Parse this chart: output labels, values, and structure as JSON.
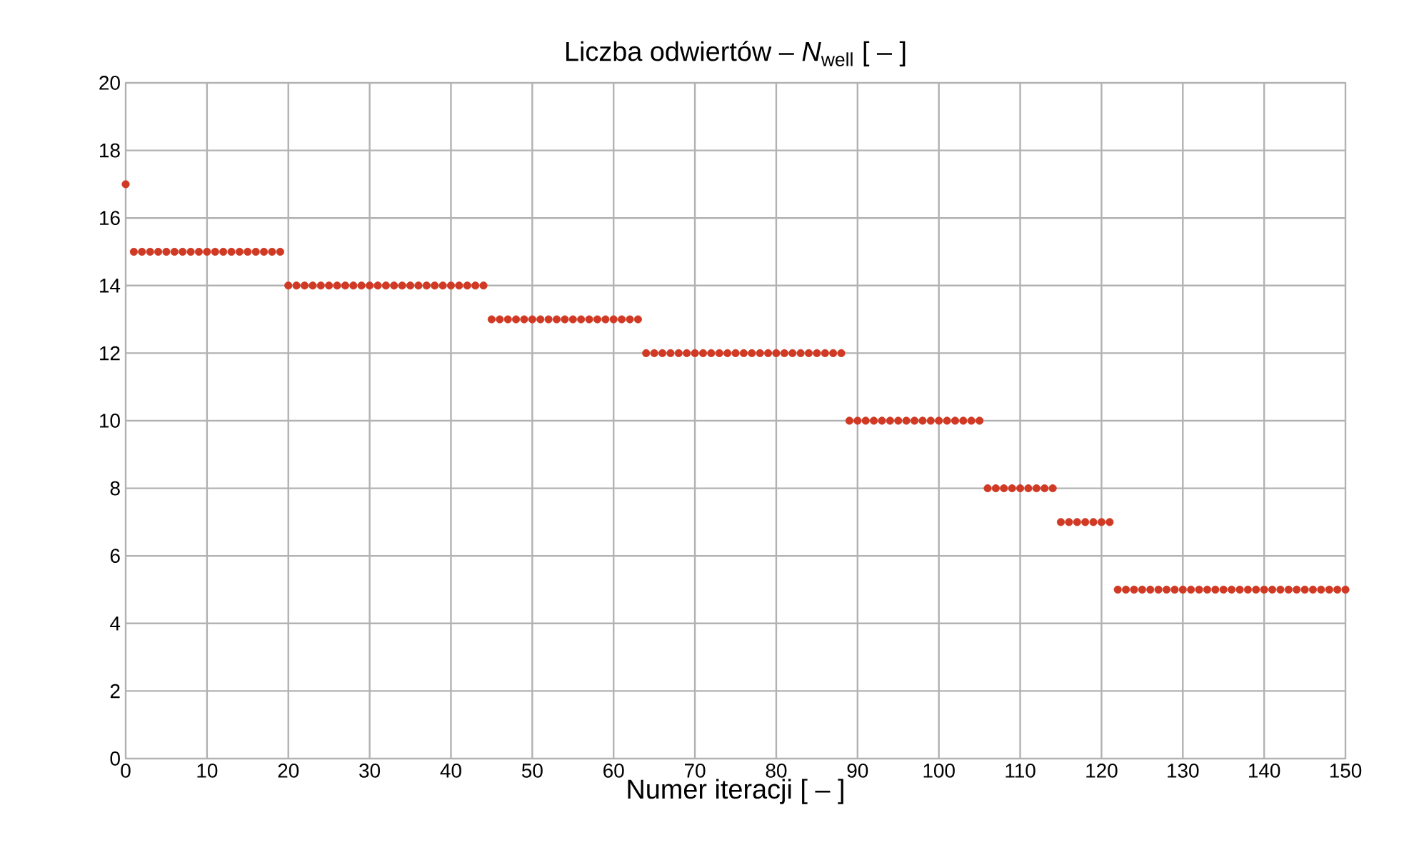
{
  "chart_data": {
    "type": "scatter",
    "title": "Liczba odwiertów – *N*$_{well}$ [ – ]",
    "xlabel": "Numer iteracji [ – ]",
    "x": [
      0,
      1,
      2,
      3,
      4,
      5,
      6,
      7,
      8,
      9,
      10,
      11,
      12,
      13,
      14,
      15,
      16,
      17,
      18,
      19,
      20,
      21,
      22,
      23,
      24,
      25,
      26,
      27,
      28,
      29,
      30,
      31,
      32,
      33,
      34,
      35,
      36,
      37,
      38,
      39,
      40,
      41,
      42,
      43,
      44,
      45,
      46,
      47,
      48,
      49,
      50,
      51,
      52,
      53,
      54,
      55,
      56,
      57,
      58,
      59,
      60,
      61,
      62,
      63,
      64,
      65,
      66,
      67,
      68,
      69,
      70,
      71,
      72,
      73,
      74,
      75,
      76,
      77,
      78,
      79,
      80,
      81,
      82,
      83,
      84,
      85,
      86,
      87,
      88,
      89,
      90,
      91,
      92,
      93,
      94,
      95,
      96,
      97,
      98,
      99,
      100,
      101,
      102,
      103,
      104,
      105,
      106,
      107,
      108,
      109,
      110,
      111,
      112,
      113,
      114,
      115,
      116,
      117,
      118,
      119,
      120,
      121,
      122,
      123,
      124,
      125,
      126,
      127,
      128,
      129,
      130,
      131,
      132,
      133,
      134,
      135,
      136,
      137,
      138,
      139,
      140,
      141,
      142,
      143,
      144,
      145,
      146,
      147,
      148,
      149,
      150
    ],
    "series": [
      {
        "color": "#d03a24",
        "values": [
          17,
          15,
          15,
          15,
          15,
          15,
          15,
          15,
          15,
          15,
          15,
          15,
          15,
          15,
          15,
          15,
          15,
          15,
          15,
          15,
          14,
          14,
          14,
          14,
          14,
          14,
          14,
          14,
          14,
          14,
          14,
          14,
          14,
          14,
          14,
          14,
          14,
          14,
          14,
          14,
          14,
          14,
          14,
          14,
          14,
          13,
          13,
          13,
          13,
          13,
          13,
          13,
          13,
          13,
          13,
          13,
          13,
          13,
          13,
          13,
          13,
          13,
          13,
          13,
          12,
          12,
          12,
          12,
          12,
          12,
          12,
          12,
          12,
          12,
          12,
          12,
          12,
          12,
          12,
          12,
          12,
          12,
          12,
          12,
          12,
          12,
          12,
          12,
          12,
          10,
          10,
          10,
          10,
          10,
          10,
          10,
          10,
          10,
          10,
          10,
          10,
          10,
          10,
          10,
          10,
          10,
          8,
          8,
          8,
          8,
          8,
          8,
          8,
          8,
          8,
          7,
          7,
          7,
          7,
          7,
          7,
          7,
          5,
          5,
          5,
          5,
          5,
          5,
          5,
          5,
          5,
          5,
          5,
          5,
          5,
          5,
          5,
          5,
          5,
          5,
          5,
          5,
          5,
          5,
          5,
          5,
          5,
          5,
          5,
          5,
          5
        ]
      }
    ],
    "xlim": [
      0,
      150
    ],
    "xticks": [
      0,
      10,
      20,
      30,
      40,
      50,
      60,
      70,
      80,
      90,
      100,
      110,
      120,
      130,
      140,
      150
    ],
    "ylim": [
      0,
      20
    ],
    "yticks": [
      0,
      2,
      4,
      6,
      8,
      10,
      12,
      14,
      16,
      18,
      20
    ],
    "grid": true,
    "marker": "circle"
  }
}
